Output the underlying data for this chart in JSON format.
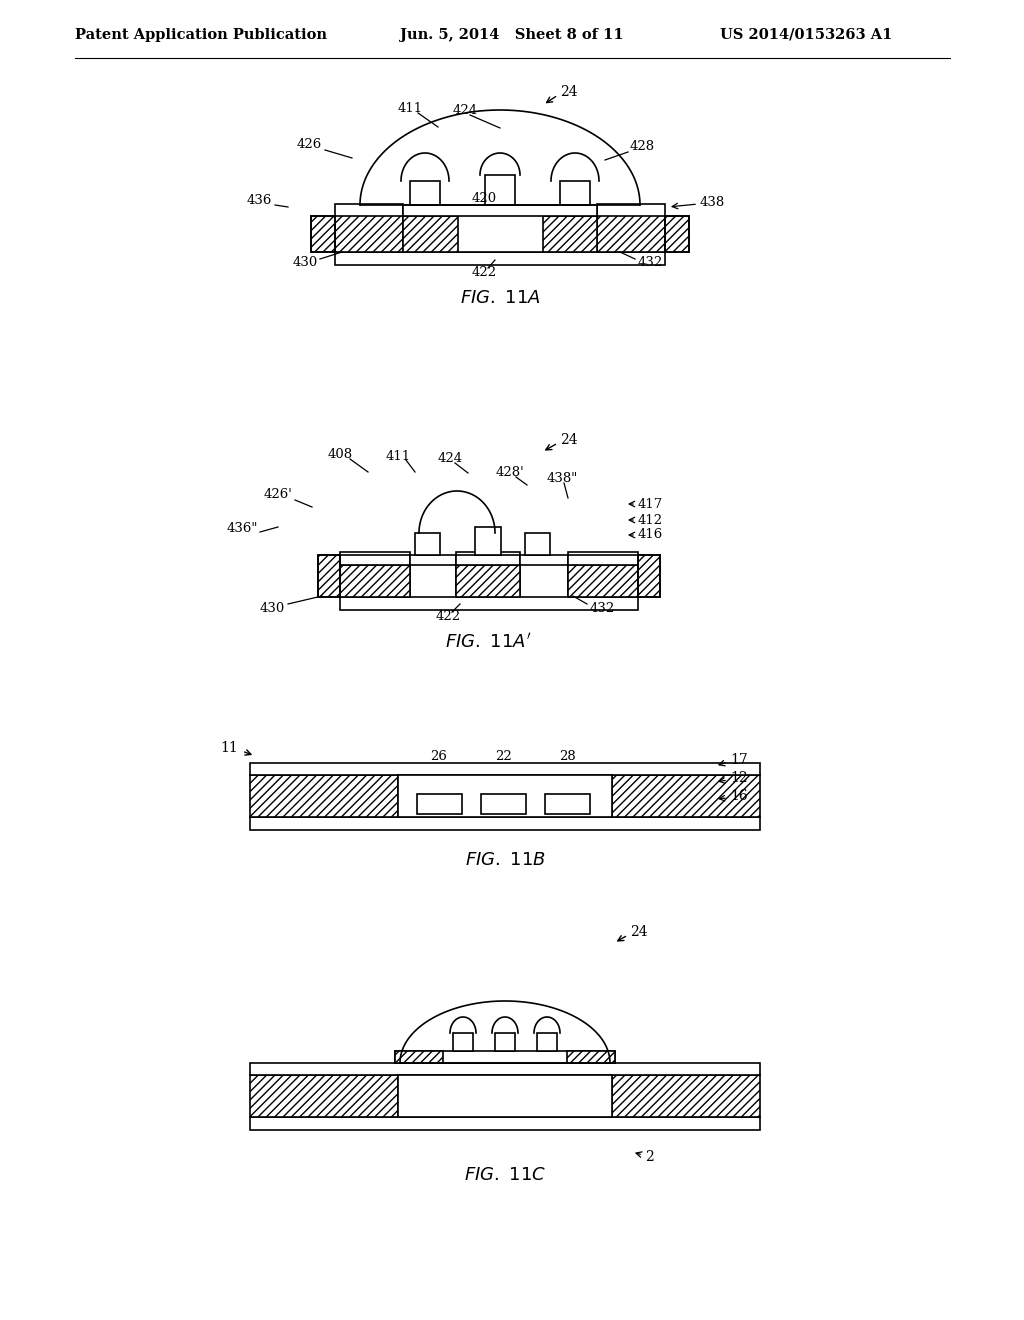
{
  "title_left": "Patent Application Publication",
  "title_mid": "Jun. 5, 2014   Sheet 8 of 11",
  "title_right": "US 2014/0153263 A1",
  "bg_color": "#ffffff",
  "line_color": "#000000",
  "hatch_color": "#000000",
  "fig_labels": [
    "FIG. 11A",
    "FIG. 11A'",
    "FIG. 11B",
    "FIG. 11C"
  ]
}
